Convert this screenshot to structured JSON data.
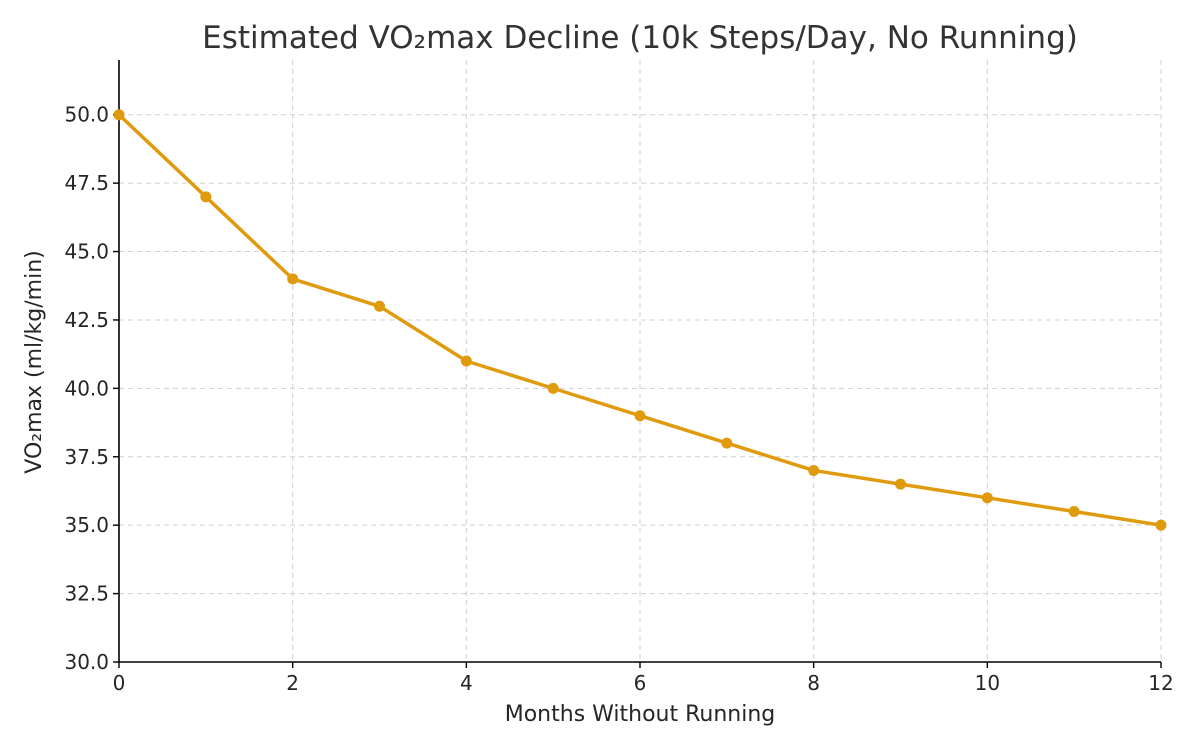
{
  "chart_data": {
    "type": "line",
    "title": "Estimated VO₂max Decline (10k Steps/Day, No Running)",
    "xlabel": "Months Without Running",
    "ylabel": "VO₂max (ml/kg/min)",
    "x": [
      0,
      1,
      2,
      3,
      4,
      5,
      6,
      7,
      8,
      9,
      10,
      11,
      12
    ],
    "series": [
      {
        "values": [
          50,
          47,
          44,
          43,
          41,
          40,
          39,
          38,
          37,
          36.5,
          36,
          35.5,
          35
        ],
        "color": "#e09a0e",
        "marker": "circle"
      }
    ],
    "xlim": [
      0,
      12
    ],
    "ylim": [
      30,
      52
    ],
    "xticks": [
      0,
      2,
      4,
      6,
      8,
      10,
      12
    ],
    "yticks": [
      30.0,
      32.5,
      35.0,
      37.5,
      40.0,
      42.5,
      45.0,
      47.5,
      50.0
    ],
    "xtick_labels": [
      "0",
      "2",
      "4",
      "6",
      "8",
      "10",
      "12"
    ],
    "ytick_labels": [
      "30.0",
      "32.5",
      "35.0",
      "37.5",
      "40.0",
      "42.5",
      "45.0",
      "47.5",
      "50.0"
    ],
    "grid": true,
    "legend": false
  }
}
